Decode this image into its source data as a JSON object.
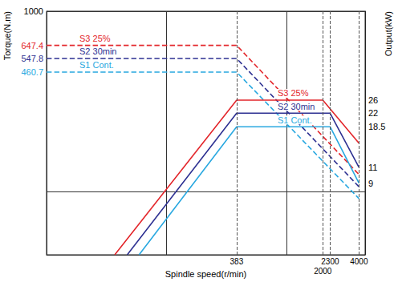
{
  "chart_data": {
    "type": "line",
    "x_label": "Spindle speed(r/min)",
    "y_label": "Torque(N.m)",
    "y2_label": "Output(kW)",
    "log": true,
    "grid": true,
    "xlim": [
      10,
      4500
    ],
    "xticks": [
      383,
      2000,
      2300,
      4000
    ],
    "ylim": [
      45,
      1000
    ],
    "yticks": [
      460.7,
      547.8,
      647.4,
      1000
    ],
    "y2lim": [
      3.6,
      81
    ],
    "y2ticks": [
      9,
      11,
      18.5,
      22,
      26
    ],
    "series": [
      {
        "name": "S3 25%",
        "color": "#e3262b",
        "line_style": "dashed",
        "x": [
          10,
          383,
          4000
        ],
        "values": [
          647.4,
          647.4,
          125
        ]
      },
      {
        "name": "S2 30min",
        "color": "#2e3192",
        "line_style": "dashed",
        "x": [
          10,
          383,
          4000
        ],
        "values": [
          547.8,
          547.8,
          107
        ]
      },
      {
        "name": "S1 Cont.",
        "color": "#29a8e0",
        "line_style": "dashed",
        "x": [
          10,
          383,
          4000
        ],
        "values": [
          460.7,
          460.7,
          92
        ]
      },
      {
        "name": "S3 25%",
        "color": "#e3262b",
        "line_style": "solid",
        "axis": "y2",
        "x": [
          37,
          383,
          2000,
          4000
        ],
        "values": [
          3.6,
          26,
          26,
          15
        ]
      },
      {
        "name": "S2 30min",
        "color": "#2e3192",
        "line_style": "solid",
        "axis": "y2",
        "x": [
          47,
          383,
          2300,
          4000
        ],
        "values": [
          3.6,
          22,
          22,
          11
        ]
      },
      {
        "name": "S1 Cont.",
        "color": "#29a8e0",
        "line_style": "solid",
        "axis": "y2",
        "x": [
          59,
          383,
          2300,
          4000
        ],
        "values": [
          3.6,
          18.5,
          18.5,
          9
        ]
      }
    ]
  }
}
